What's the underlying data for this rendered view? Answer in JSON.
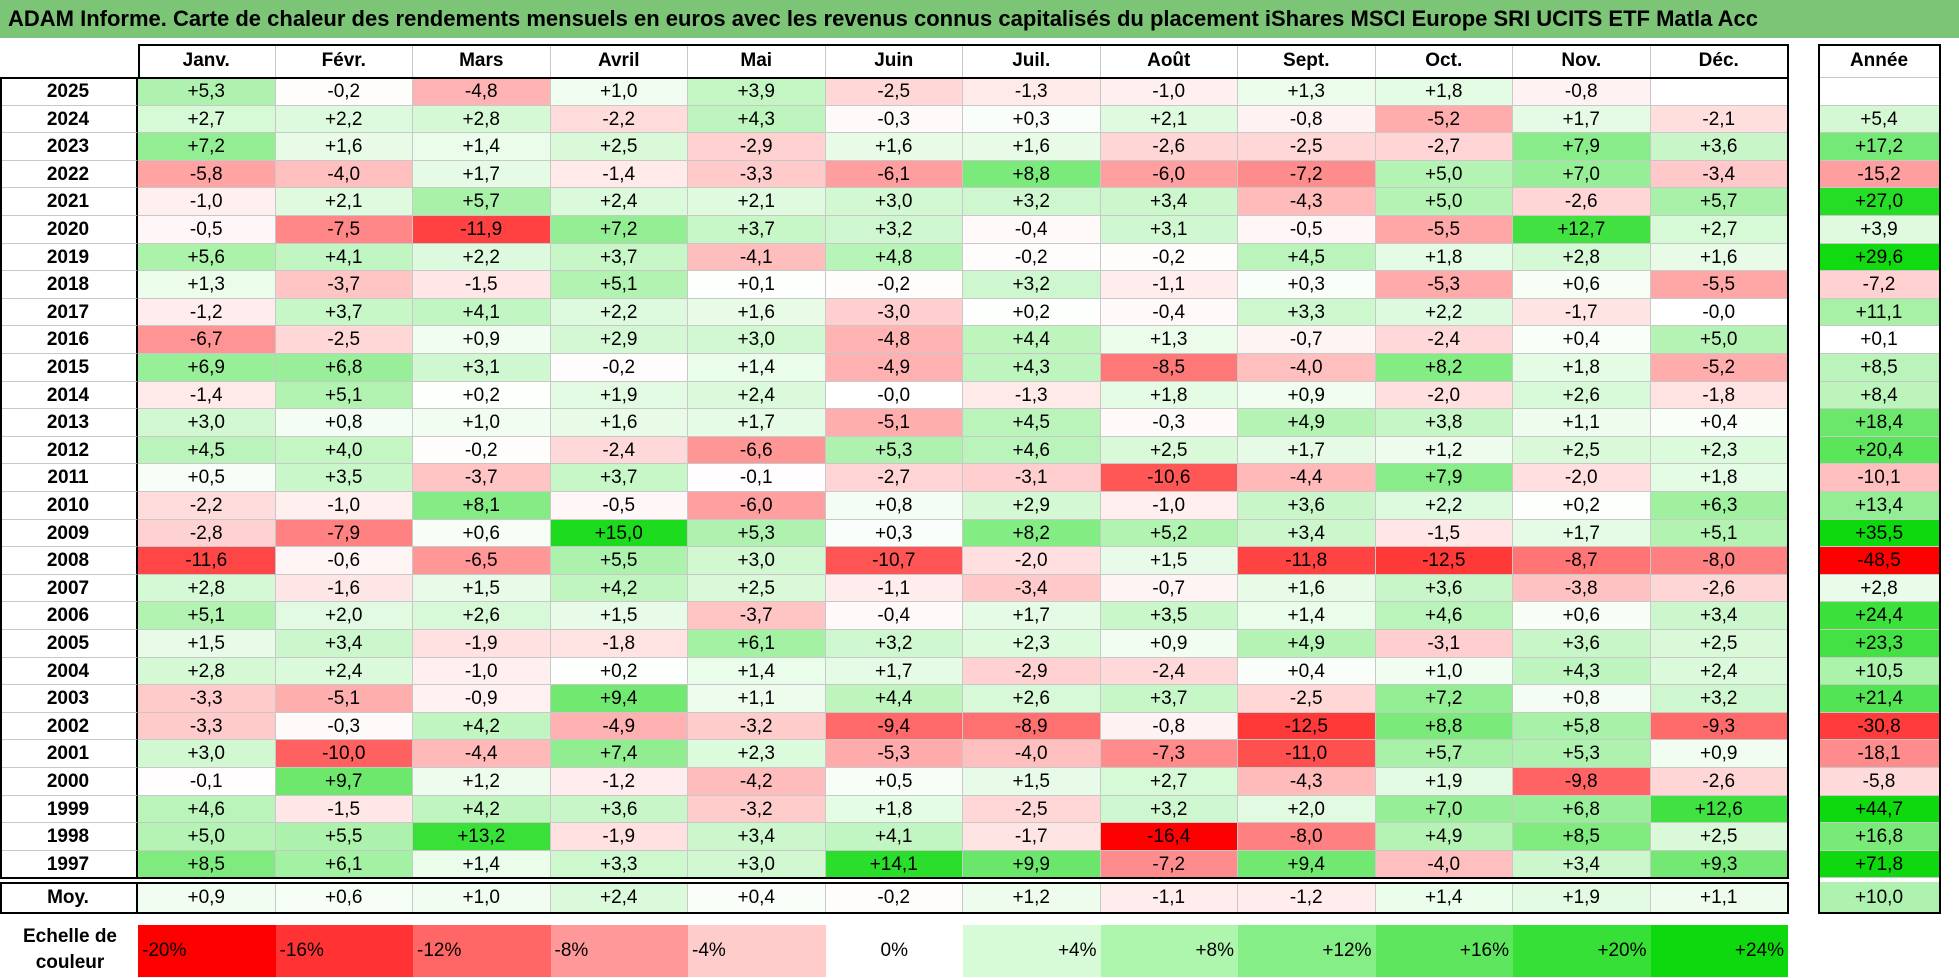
{
  "title": "ADAM Informe. Carte de chaleur des rendements mensuels en euros avec les revenus connus capitalisés du placement iShares MSCI Europe SRI UCITS ETF Matla Acc",
  "chart_data": {
    "type": "heatmap",
    "months": [
      "Janv.",
      "Févr.",
      "Mars",
      "Avril",
      "Mai",
      "Juin",
      "Juil.",
      "Août",
      "Sept.",
      "Oct.",
      "Nov.",
      "Déc."
    ],
    "year_header": "Année",
    "avg_label": "Moy.",
    "rows": [
      {
        "year": "2025",
        "values": [
          "+5,3",
          "-0,2",
          "-4,8",
          "+1,0",
          "+3,9",
          "-2,5",
          "-1,3",
          "-1,0",
          "+1,3",
          "+1,8",
          "-0,8",
          ""
        ],
        "annual": ""
      },
      {
        "year": "2024",
        "values": [
          "+2,7",
          "+2,2",
          "+2,8",
          "-2,2",
          "+4,3",
          "-0,3",
          "+0,3",
          "+2,1",
          "-0,8",
          "-5,2",
          "+1,7",
          "-2,1"
        ],
        "annual": "+5,4"
      },
      {
        "year": "2023",
        "values": [
          "+7,2",
          "+1,6",
          "+1,4",
          "+2,5",
          "-2,9",
          "+1,6",
          "+1,6",
          "-2,6",
          "-2,5",
          "-2,7",
          "+7,9",
          "+3,6"
        ],
        "annual": "+17,2"
      },
      {
        "year": "2022",
        "values": [
          "-5,8",
          "-4,0",
          "+1,7",
          "-1,4",
          "-3,3",
          "-6,1",
          "+8,8",
          "-6,0",
          "-7,2",
          "+5,0",
          "+7,0",
          "-3,4"
        ],
        "annual": "-15,2"
      },
      {
        "year": "2021",
        "values": [
          "-1,0",
          "+2,1",
          "+5,7",
          "+2,4",
          "+2,1",
          "+3,0",
          "+3,2",
          "+3,4",
          "-4,3",
          "+5,0",
          "-2,6",
          "+5,7"
        ],
        "annual": "+27,0"
      },
      {
        "year": "2020",
        "values": [
          "-0,5",
          "-7,5",
          "-11,9",
          "+7,2",
          "+3,7",
          "+3,2",
          "-0,4",
          "+3,1",
          "-0,5",
          "-5,5",
          "+12,7",
          "+2,7"
        ],
        "annual": "+3,9"
      },
      {
        "year": "2019",
        "values": [
          "+5,6",
          "+4,1",
          "+2,2",
          "+3,7",
          "-4,1",
          "+4,8",
          "-0,2",
          "-0,2",
          "+4,5",
          "+1,8",
          "+2,8",
          "+1,6"
        ],
        "annual": "+29,6"
      },
      {
        "year": "2018",
        "values": [
          "+1,3",
          "-3,7",
          "-1,5",
          "+5,1",
          "+0,1",
          "-0,2",
          "+3,2",
          "-1,1",
          "+0,3",
          "-5,3",
          "+0,6",
          "-5,5"
        ],
        "annual": "-7,2"
      },
      {
        "year": "2017",
        "values": [
          "-1,2",
          "+3,7",
          "+4,1",
          "+2,2",
          "+1,6",
          "-3,0",
          "+0,2",
          "-0,4",
          "+3,3",
          "+2,2",
          "-1,7",
          "-0,0"
        ],
        "annual": "+11,1"
      },
      {
        "year": "2016",
        "values": [
          "-6,7",
          "-2,5",
          "+0,9",
          "+2,9",
          "+3,0",
          "-4,8",
          "+4,4",
          "+1,3",
          "-0,7",
          "-2,4",
          "+0,4",
          "+5,0"
        ],
        "annual": "+0,1"
      },
      {
        "year": "2015",
        "values": [
          "+6,9",
          "+6,8",
          "+3,1",
          "-0,2",
          "+1,4",
          "-4,9",
          "+4,3",
          "-8,5",
          "-4,0",
          "+8,2",
          "+1,8",
          "-5,2"
        ],
        "annual": "+8,5"
      },
      {
        "year": "2014",
        "values": [
          "-1,4",
          "+5,1",
          "+0,2",
          "+1,9",
          "+2,4",
          "-0,0",
          "-1,3",
          "+1,8",
          "+0,9",
          "-2,0",
          "+2,6",
          "-1,8"
        ],
        "annual": "+8,4"
      },
      {
        "year": "2013",
        "values": [
          "+3,0",
          "+0,8",
          "+1,0",
          "+1,6",
          "+1,7",
          "-5,1",
          "+4,5",
          "-0,3",
          "+4,9",
          "+3,8",
          "+1,1",
          "+0,4"
        ],
        "annual": "+18,4"
      },
      {
        "year": "2012",
        "values": [
          "+4,5",
          "+4,0",
          "-0,2",
          "-2,4",
          "-6,6",
          "+5,3",
          "+4,6",
          "+2,5",
          "+1,7",
          "+1,2",
          "+2,5",
          "+2,3"
        ],
        "annual": "+20,4"
      },
      {
        "year": "2011",
        "values": [
          "+0,5",
          "+3,5",
          "-3,7",
          "+3,7",
          "-0,1",
          "-2,7",
          "-3,1",
          "-10,6",
          "-4,4",
          "+7,9",
          "-2,0",
          "+1,8"
        ],
        "annual": "-10,1"
      },
      {
        "year": "2010",
        "values": [
          "-2,2",
          "-1,0",
          "+8,1",
          "-0,5",
          "-6,0",
          "+0,8",
          "+2,9",
          "-1,0",
          "+3,6",
          "+2,2",
          "+0,2",
          "+6,3"
        ],
        "annual": "+13,4"
      },
      {
        "year": "2009",
        "values": [
          "-2,8",
          "-7,9",
          "+0,6",
          "+15,0",
          "+5,3",
          "+0,3",
          "+8,2",
          "+5,2",
          "+3,4",
          "-1,5",
          "+1,7",
          "+5,1"
        ],
        "annual": "+35,5"
      },
      {
        "year": "2008",
        "values": [
          "-11,6",
          "-0,6",
          "-6,5",
          "+5,5",
          "+3,0",
          "-10,7",
          "-2,0",
          "+1,5",
          "-11,8",
          "-12,5",
          "-8,7",
          "-8,0"
        ],
        "annual": "-48,5"
      },
      {
        "year": "2007",
        "values": [
          "+2,8",
          "-1,6",
          "+1,5",
          "+4,2",
          "+2,5",
          "-1,1",
          "-3,4",
          "-0,7",
          "+1,6",
          "+3,6",
          "-3,8",
          "-2,6"
        ],
        "annual": "+2,8"
      },
      {
        "year": "2006",
        "values": [
          "+5,1",
          "+2,0",
          "+2,6",
          "+1,5",
          "-3,7",
          "-0,4",
          "+1,7",
          "+3,5",
          "+1,4",
          "+4,6",
          "+0,6",
          "+3,4"
        ],
        "annual": "+24,4"
      },
      {
        "year": "2005",
        "values": [
          "+1,5",
          "+3,4",
          "-1,9",
          "-1,8",
          "+6,1",
          "+3,2",
          "+2,3",
          "+0,9",
          "+4,9",
          "-3,1",
          "+3,6",
          "+2,5"
        ],
        "annual": "+23,3"
      },
      {
        "year": "2004",
        "values": [
          "+2,8",
          "+2,4",
          "-1,0",
          "+0,2",
          "+1,4",
          "+1,7",
          "-2,9",
          "-2,4",
          "+0,4",
          "+1,0",
          "+4,3",
          "+2,4"
        ],
        "annual": "+10,5"
      },
      {
        "year": "2003",
        "values": [
          "-3,3",
          "-5,1",
          "-0,9",
          "+9,4",
          "+1,1",
          "+4,4",
          "+2,6",
          "+3,7",
          "-2,5",
          "+7,2",
          "+0,8",
          "+3,2"
        ],
        "annual": "+21,4"
      },
      {
        "year": "2002",
        "values": [
          "-3,3",
          "-0,3",
          "+4,2",
          "-4,9",
          "-3,2",
          "-9,4",
          "-8,9",
          "-0,8",
          "-12,5",
          "+8,8",
          "+5,8",
          "-9,3"
        ],
        "annual": "-30,8"
      },
      {
        "year": "2001",
        "values": [
          "+3,0",
          "-10,0",
          "-4,4",
          "+7,4",
          "+2,3",
          "-5,3",
          "-4,0",
          "-7,3",
          "-11,0",
          "+5,7",
          "+5,3",
          "+0,9"
        ],
        "annual": "-18,1"
      },
      {
        "year": "2000",
        "values": [
          "-0,1",
          "+9,7",
          "+1,2",
          "-1,2",
          "-4,2",
          "+0,5",
          "+1,5",
          "+2,7",
          "-4,3",
          "+1,9",
          "-9,8",
          "-2,6"
        ],
        "annual": "-5,8"
      },
      {
        "year": "1999",
        "values": [
          "+4,6",
          "-1,5",
          "+4,2",
          "+3,6",
          "-3,2",
          "+1,8",
          "-2,5",
          "+3,2",
          "+2,0",
          "+7,0",
          "+6,8",
          "+12,6"
        ],
        "annual": "+44,7"
      },
      {
        "year": "1998",
        "values": [
          "+5,0",
          "+5,5",
          "+13,2",
          "-1,9",
          "+3,4",
          "+4,1",
          "-1,7",
          "-16,4",
          "-8,0",
          "+4,9",
          "+8,5",
          "+2,5"
        ],
        "annual": "+16,8"
      },
      {
        "year": "1997",
        "values": [
          "+8,5",
          "+6,1",
          "+1,4",
          "+3,3",
          "+3,0",
          "+14,1",
          "+9,9",
          "-7,2",
          "+9,4",
          "-4,0",
          "+3,4",
          "+9,3"
        ],
        "annual": "+71,8"
      }
    ],
    "averages": [
      "+0,9",
      "+0,6",
      "+1,0",
      "+2,4",
      "+0,4",
      "-0,2",
      "+1,2",
      "-1,1",
      "-1,2",
      "+1,4",
      "+1,9",
      "+1,1"
    ],
    "average_annual": "+10,0",
    "scale_label": "Echelle de couleur",
    "scale": [
      {
        "label": "-20%",
        "value": -20,
        "color": "#ff0000"
      },
      {
        "label": "-16%",
        "value": -16,
        "color": "#ff3333"
      },
      {
        "label": "-12%",
        "value": -12,
        "color": "#ff6666"
      },
      {
        "label": "-8%",
        "value": -8,
        "color": "#ff9999"
      },
      {
        "label": "-4%",
        "value": -4,
        "color": "#ffcccc"
      },
      {
        "label": "0%",
        "value": 0,
        "color": "#ffffff"
      },
      {
        "label": "+4%",
        "value": 4,
        "color": "#d6fbd6"
      },
      {
        "label": "+8%",
        "value": 8,
        "color": "#aef5ae"
      },
      {
        "label": "+12%",
        "value": 12,
        "color": "#86ee86"
      },
      {
        "label": "+16%",
        "value": 16,
        "color": "#5ee75e"
      },
      {
        "label": "+20%",
        "value": 20,
        "color": "#36e036"
      },
      {
        "label": "+24%",
        "value": 24,
        "color": "#0ed90e"
      }
    ]
  }
}
